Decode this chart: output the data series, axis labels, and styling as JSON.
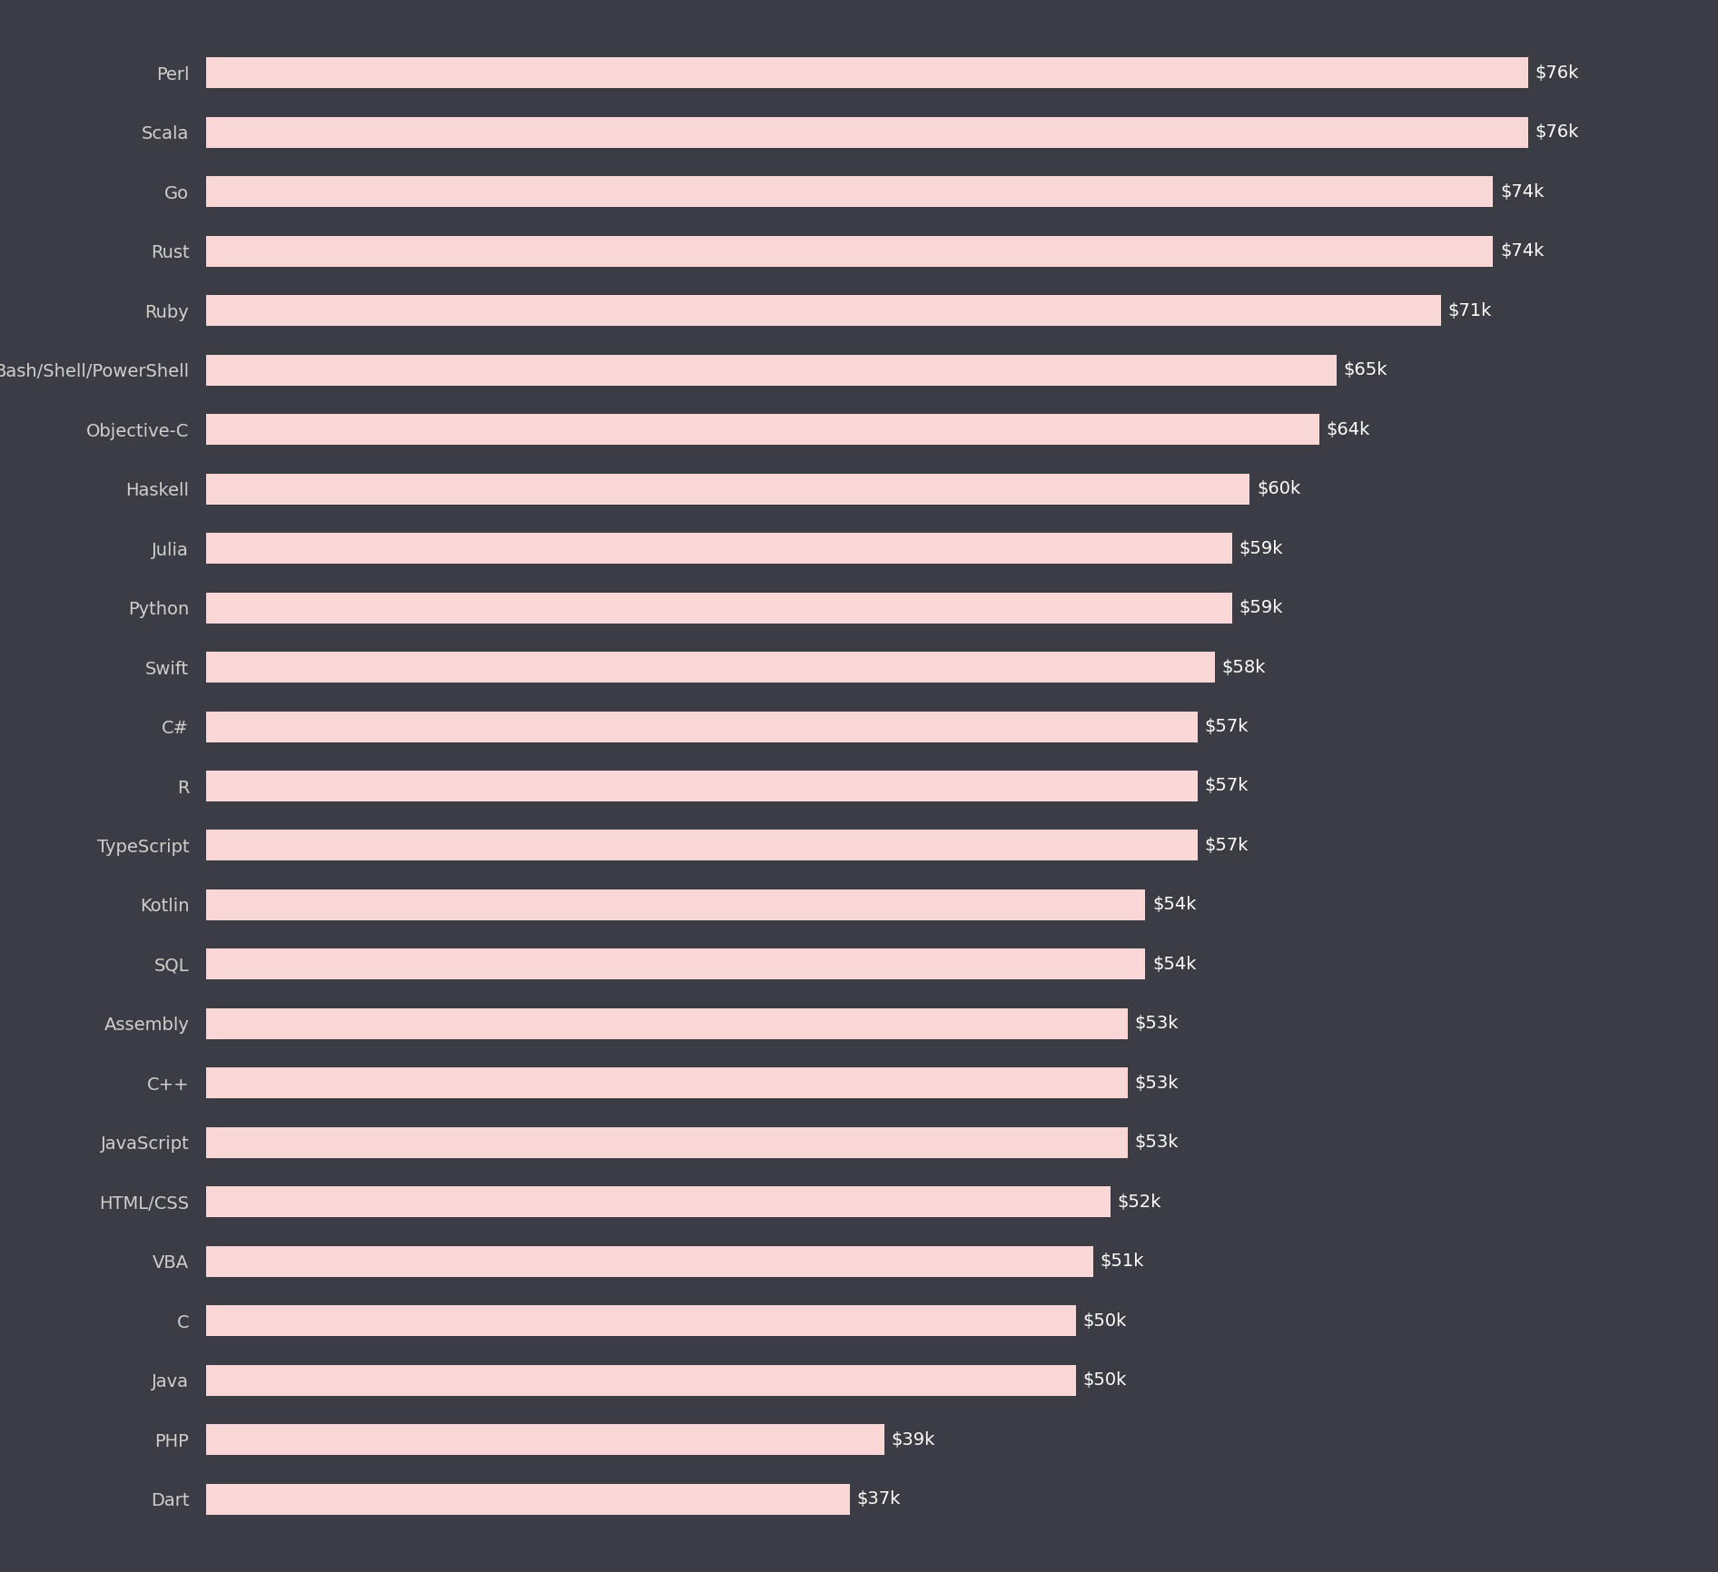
{
  "languages": [
    "Perl",
    "Scala",
    "Go",
    "Rust",
    "Ruby",
    "Bash/Shell/PowerShell",
    "Objective-C",
    "Haskell",
    "Julia",
    "Python",
    "Swift",
    "C#",
    "R",
    "TypeScript",
    "Kotlin",
    "SQL",
    "Assembly",
    "C++",
    "JavaScript",
    "HTML/CSS",
    "VBA",
    "C",
    "Java",
    "PHP",
    "Dart"
  ],
  "values": [
    76,
    76,
    74,
    74,
    71,
    65,
    64,
    60,
    59,
    59,
    58,
    57,
    57,
    57,
    54,
    54,
    53,
    53,
    53,
    52,
    51,
    50,
    50,
    39,
    37
  ],
  "labels": [
    "$76k",
    "$76k",
    "$74k",
    "$74k",
    "$71k",
    "$65k",
    "$64k",
    "$60k",
    "$59k",
    "$59k",
    "$58k",
    "$57k",
    "$57k",
    "$57k",
    "$54k",
    "$54k",
    "$53k",
    "$53k",
    "$53k",
    "$52k",
    "$51k",
    "$50k",
    "$50k",
    "$39k",
    "$37k"
  ],
  "bar_color": "#f9d7d7",
  "background_color": "#3c3c44",
  "text_color": "#d0cece",
  "value_text_color": "#ffffff",
  "label_fontsize": 14,
  "value_fontsize": 14,
  "max_value": 76,
  "bar_height": 0.52
}
